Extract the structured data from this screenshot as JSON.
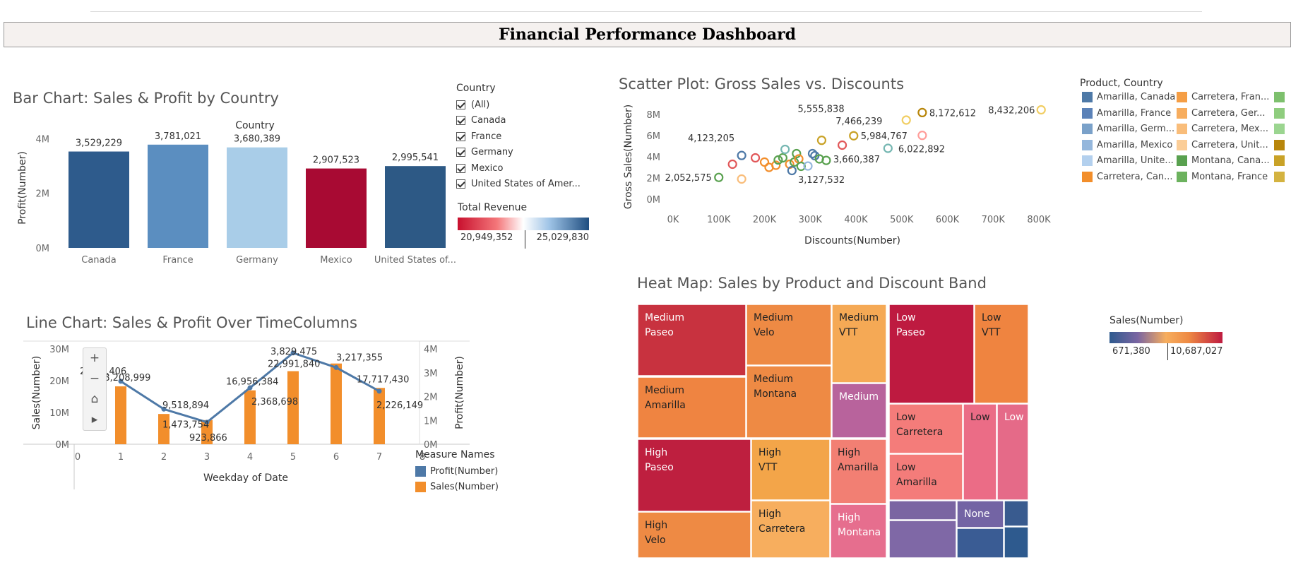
{
  "dashboard": {
    "title": "Financial Performance Dashboard"
  },
  "bar_section": {
    "title": "Bar Chart: Sales & Profit by Country",
    "header": "Country"
  },
  "country_filter": {
    "title": "Country",
    "items": [
      "(All)",
      "Canada",
      "France",
      "Germany",
      "Mexico",
      "United States of Amer..."
    ]
  },
  "revenue_legend": {
    "title": "Total Revenue",
    "min_label": "20,949,352",
    "max_label": "25,029,830"
  },
  "scatter_section": {
    "title": "Scatter Plot: Gross Sales vs. Discounts"
  },
  "product_legend": {
    "title": "Product, Country",
    "items": [
      {
        "label": "Amarilla, Canada",
        "color": "#4e79a7"
      },
      {
        "label": "Amarilla, France",
        "color": "#5b82b8"
      },
      {
        "label": "Amarilla, Germ...",
        "color": "#7aa1c9"
      },
      {
        "label": "Amarilla, Mexico",
        "color": "#95b7dc"
      },
      {
        "label": "Amarilla, Unite...",
        "color": "#b3d0ee"
      },
      {
        "label": "Carretera, Can...",
        "color": "#f28e2b"
      },
      {
        "label": "Carretera, Fran...",
        "color": "#f59e45"
      },
      {
        "label": "Carretera, Ger...",
        "color": "#f7ad5e"
      },
      {
        "label": "Carretera, Mex...",
        "color": "#f9bd7a"
      },
      {
        "label": "Carretera, Unit...",
        "color": "#fbcd97"
      },
      {
        "label": "Montana, Cana...",
        "color": "#59a14f"
      },
      {
        "label": "Montana, France",
        "color": "#6cb25e"
      },
      {
        "label": "",
        "color": "#7dc06d"
      },
      {
        "label": "",
        "color": "#8fcd7e"
      },
      {
        "label": "",
        "color": "#9bd590"
      },
      {
        "label": "",
        "color": "#b8860b"
      },
      {
        "label": "",
        "color": "#c9a227"
      },
      {
        "label": "",
        "color": "#d4b340"
      }
    ]
  },
  "line_section": {
    "title": "Line Chart: Sales & Profit Over TimeColumns"
  },
  "measure_legend": {
    "title": "Measure Names",
    "items": [
      {
        "label": "Profit(Number)",
        "color": "#4e79a7"
      },
      {
        "label": "Sales(Number)",
        "color": "#f28e2b"
      }
    ]
  },
  "heat_section": {
    "title": "Heat Map: Sales by Product and Discount Band"
  },
  "sales_legend": {
    "title": "Sales(Number)",
    "min_label": "671,380",
    "max_label": "10,687,027"
  },
  "chart_data": [
    {
      "type": "bar",
      "title": "Bar Chart: Sales & Profit by Country",
      "xlabel": "Country",
      "ylabel": "Profit(Number)",
      "categories": [
        "Canada",
        "France",
        "Germany",
        "Mexico",
        "United States of..."
      ],
      "values": [
        3529229,
        3781021,
        3680389,
        2907523,
        2995541
      ],
      "value_labels": [
        "3,529,229",
        "3,781,021",
        "3,680,389",
        "2,907,523",
        "2,995,541"
      ],
      "colors": [
        "#2e5b8c",
        "#5b8ec0",
        "#a9cde8",
        "#a80a33",
        "#2d5985"
      ],
      "yticks": [
        {
          "v": 0,
          "t": "0M"
        },
        {
          "v": 2000000,
          "t": "2M"
        },
        {
          "v": 4000000,
          "t": "4M"
        }
      ],
      "ylim": [
        0,
        4500000
      ]
    },
    {
      "type": "scatter",
      "title": "Scatter Plot: Gross Sales vs. Discounts",
      "xlabel": "Discounts(Number)",
      "ylabel": "Gross Sales(Number)",
      "xlim": [
        0,
        850000
      ],
      "ylim": [
        0,
        9000000
      ],
      "xticks": [
        {
          "v": 0,
          "t": "0K"
        },
        {
          "v": 100000,
          "t": "100K"
        },
        {
          "v": 200000,
          "t": "200K"
        },
        {
          "v": 300000,
          "t": "300K"
        },
        {
          "v": 400000,
          "t": "400K"
        },
        {
          "v": 500000,
          "t": "500K"
        },
        {
          "v": 600000,
          "t": "600K"
        },
        {
          "v": 700000,
          "t": "700K"
        },
        {
          "v": 800000,
          "t": "800K"
        }
      ],
      "yticks": [
        {
          "v": 0,
          "t": "0M"
        },
        {
          "v": 2000000,
          "t": "2M"
        },
        {
          "v": 4000000,
          "t": "4M"
        },
        {
          "v": 6000000,
          "t": "6M"
        },
        {
          "v": 8000000,
          "t": "8M"
        }
      ],
      "points": [
        {
          "x": 100000,
          "y": 2052575,
          "c": "#59a14f",
          "label": "2,052,575"
        },
        {
          "x": 150000,
          "y": 1900000,
          "c": "#f9bd7a"
        },
        {
          "x": 130000,
          "y": 3300000,
          "c": "#e15759"
        },
        {
          "x": 150000,
          "y": 4123205,
          "c": "#4e79a7",
          "label": "4,123,205"
        },
        {
          "x": 180000,
          "y": 3900000,
          "c": "#e15759"
        },
        {
          "x": 200000,
          "y": 3500000,
          "c": "#f28e2b"
        },
        {
          "x": 210000,
          "y": 3000000,
          "c": "#f28e2b"
        },
        {
          "x": 225000,
          "y": 3200000,
          "c": "#f28e2b"
        },
        {
          "x": 230000,
          "y": 3700000,
          "c": "#59a14f"
        },
        {
          "x": 240000,
          "y": 3900000,
          "c": "#59a14f"
        },
        {
          "x": 245000,
          "y": 4700000,
          "c": "#76b7b2"
        },
        {
          "x": 255000,
          "y": 3300000,
          "c": "#f28e2b"
        },
        {
          "x": 260000,
          "y": 2700000,
          "c": "#4e79a7"
        },
        {
          "x": 265000,
          "y": 3500000,
          "c": "#59a14f"
        },
        {
          "x": 270000,
          "y": 4300000,
          "c": "#59a14f"
        },
        {
          "x": 275000,
          "y": 3800000,
          "c": "#f28e2b"
        },
        {
          "x": 280000,
          "y": 3100000,
          "c": "#59a14f"
        },
        {
          "x": 295000,
          "y": 3127532,
          "c": "#95b7dc",
          "label": "3,127,532"
        },
        {
          "x": 305000,
          "y": 4300000,
          "c": "#4e79a7"
        },
        {
          "x": 310000,
          "y": 4100000,
          "c": "#4e79a7"
        },
        {
          "x": 320000,
          "y": 3800000,
          "c": "#59a14f"
        },
        {
          "x": 325000,
          "y": 5555838,
          "c": "#c9a227",
          "label": "5,555,838"
        },
        {
          "x": 335000,
          "y": 3660387,
          "c": "#59a14f",
          "label": "3,660,387"
        },
        {
          "x": 370000,
          "y": 5100000,
          "c": "#e15759"
        },
        {
          "x": 395000,
          "y": 5984767,
          "c": "#c9a227",
          "label": "5,984,767"
        },
        {
          "x": 470000,
          "y": 4800000,
          "c": "#76b7b2"
        },
        {
          "x": 510000,
          "y": 7466239,
          "c": "#f1ce63",
          "label": "7,466,239"
        },
        {
          "x": 545000,
          "y": 8172612,
          "c": "#b8860b",
          "label": "8,172,612"
        },
        {
          "x": 545000,
          "y": 6022892,
          "c": "#ff9d9a",
          "label": "6,022,892"
        },
        {
          "x": 805000,
          "y": 8432206,
          "c": "#f1ce63",
          "label": "8,432,206"
        }
      ]
    },
    {
      "type": "line",
      "title": "Line Chart: Sales & Profit Over TimeColumns",
      "xlabel": "Weekday of Date",
      "ylabel": "Sales(Number)",
      "y2label": "Profit(Number)",
      "x": [
        1,
        2,
        3,
        4,
        5,
        6,
        7
      ],
      "xlim": [
        0,
        8
      ],
      "xticks": [
        0,
        1,
        2,
        3,
        4,
        5,
        6,
        7,
        8
      ],
      "yticks": [
        {
          "v": 0,
          "t": "0M"
        },
        {
          "v": 10000000,
          "t": "10M"
        },
        {
          "v": 20000000,
          "t": "20M"
        },
        {
          "v": 30000000,
          "t": "30M"
        }
      ],
      "y2ticks": [
        {
          "v": 0,
          "t": "0M"
        },
        {
          "v": 1000000,
          "t": "1M"
        },
        {
          "v": 2000000,
          "t": "2M"
        },
        {
          "v": 3000000,
          "t": "3M"
        },
        {
          "v": 4000000,
          "t": "4M"
        }
      ],
      "ylim": [
        0,
        30000000
      ],
      "y2lim": [
        0,
        4000000
      ],
      "series": [
        {
          "name": "Sales(Number)",
          "kind": "bar",
          "color": "#f28e2b",
          "values": [
            18208999,
            9518894,
            7600000,
            16956384,
            22991840,
            25400000,
            17717430
          ],
          "labels": [
            "18,208,999",
            "9,518,894",
            "",
            "16,956,384",
            "22,991,840",
            "",
            "17,717,430"
          ]
        },
        {
          "name": "Profit(Number)",
          "kind": "line",
          "color": "#4e79a7",
          "values": [
            2641406,
            1473754,
            923866,
            2368698,
            3829475,
            3217355,
            2226149
          ],
          "labels": [
            "2,641,406",
            "1,473,754",
            "923,866",
            "2,368,698",
            "3,829,475",
            "3,217,355",
            "2,226,149"
          ]
        }
      ]
    },
    {
      "type": "heatmap",
      "title": "Heat Map: Sales by Product and Discount Band",
      "cells": [
        {
          "l1": "Medium",
          "l2": "Paseo",
          "value": 8900000,
          "c": "#c8323f",
          "tc": "#fff"
        },
        {
          "l1": "Medium",
          "l2": "Velo",
          "value": 5600000,
          "c": "#ee8a44",
          "tc": "#222"
        },
        {
          "l1": "Medium",
          "l2": "VTT",
          "value": 3800000,
          "c": "#f5a955",
          "tc": "#222"
        },
        {
          "l1": "Medium",
          "l2": "Amarilla",
          "value": 5100000,
          "c": "#ef8441",
          "tc": "#222"
        },
        {
          "l1": "Medium",
          "l2": "Montana",
          "value": 4900000,
          "c": "#ee8a44",
          "tc": "#222"
        },
        {
          "l1": "Medium",
          "l2": "",
          "value": 2400000,
          "c": "#b8639c",
          "tc": "#fff"
        },
        {
          "l1": "Low",
          "l2": "Paseo",
          "value": 10687027,
          "c": "#be1a40",
          "tc": "#fff"
        },
        {
          "l1": "Low",
          "l2": "VTT",
          "value": 5900000,
          "c": "#ef8440",
          "tc": "#222"
        },
        {
          "l1": "Low",
          "l2": "Carretera",
          "value": 3400000,
          "c": "#f47c7a",
          "tc": "#222"
        },
        {
          "l1": "Low",
          "l2": "",
          "value": 3000000,
          "c": "#eb6c86",
          "tc": "#222"
        },
        {
          "l1": "Low",
          "l2": "",
          "value": 2800000,
          "c": "#e56a88",
          "tc": "#fff"
        },
        {
          "l1": "Low",
          "l2": "Amarilla",
          "value": 3300000,
          "c": "#f47c7a",
          "tc": "#222"
        },
        {
          "l1": "High",
          "l2": "Paseo",
          "value": 9500000,
          "c": "#be1f3f",
          "tc": "#fff"
        },
        {
          "l1": "High",
          "l2": "VTT",
          "value": 5000000,
          "c": "#f3a549",
          "tc": "#222"
        },
        {
          "l1": "High",
          "l2": "Amarilla",
          "value": 3800000,
          "c": "#f27f73",
          "tc": "#222"
        },
        {
          "l1": "High",
          "l2": "Velo",
          "value": 5400000,
          "c": "#ee8a44",
          "tc": "#222"
        },
        {
          "l1": "High",
          "l2": "Carretera",
          "value": 4400000,
          "c": "#f7ae5e",
          "tc": "#222"
        },
        {
          "l1": "High",
          "l2": "Montana",
          "value": 3200000,
          "c": "#e66e8e",
          "tc": "#fff"
        },
        {
          "l1": "",
          "l2": "",
          "value": 1300000,
          "c": "#7a65a2",
          "tc": "#fff"
        },
        {
          "l1": "",
          "l2": "",
          "value": 1200000,
          "c": "#7f68a6",
          "tc": "#fff"
        },
        {
          "l1": "None",
          "l2": "",
          "value": 1100000,
          "c": "#7364a4",
          "tc": "#fff"
        },
        {
          "l1": "",
          "l2": "",
          "value": 900000,
          "c": "#395b8f",
          "tc": "#fff"
        },
        {
          "l1": "",
          "l2": "",
          "value": 800000,
          "c": "#3a5c94",
          "tc": "#fff"
        },
        {
          "l1": "",
          "l2": "",
          "value": 700000,
          "c": "#2e5a8e",
          "tc": "#fff"
        },
        {
          "l1": "",
          "l2": "",
          "value": 671380,
          "c": "#2e5a8e",
          "tc": "#fff"
        }
      ]
    }
  ]
}
